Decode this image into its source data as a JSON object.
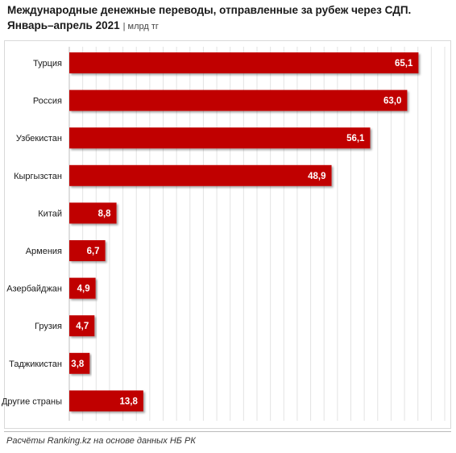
{
  "title": {
    "line1": "Международные денежные переводы, отправленные за рубеж через СДП.",
    "line2": "Январь–апрель 2021",
    "unit": "| млрд тг"
  },
  "source": "Расчёты Ranking.kz на основе данных НБ РК",
  "colors": {
    "bar": "#c00000",
    "grid": "#e3e3e3",
    "label": "#ffffff"
  },
  "chart_data": {
    "type": "bar",
    "orientation": "horizontal",
    "title": "Международные денежные переводы, отправленные за рубеж через СДП. Январь–апрель 2021",
    "unit": "млрд тг",
    "categories": [
      "Турция",
      "Россия",
      "Узбекистан",
      "Кыргызстан",
      "Китай",
      "Армения",
      "Азербайджан",
      "Грузия",
      "Таджикистан",
      "Другие страны"
    ],
    "values": [
      65.1,
      63.0,
      56.1,
      48.9,
      8.8,
      6.7,
      4.9,
      4.7,
      3.8,
      13.8
    ],
    "value_labels": [
      "65,1",
      "63,0",
      "56,1",
      "48,9",
      "8,8",
      "6,7",
      "4,9",
      "4,7",
      "3,8",
      "13,8"
    ],
    "xlim": [
      0,
      70
    ],
    "grid": true,
    "gridline_step": 2.5,
    "axis_tick_labels_shown": false,
    "legend": "none"
  }
}
